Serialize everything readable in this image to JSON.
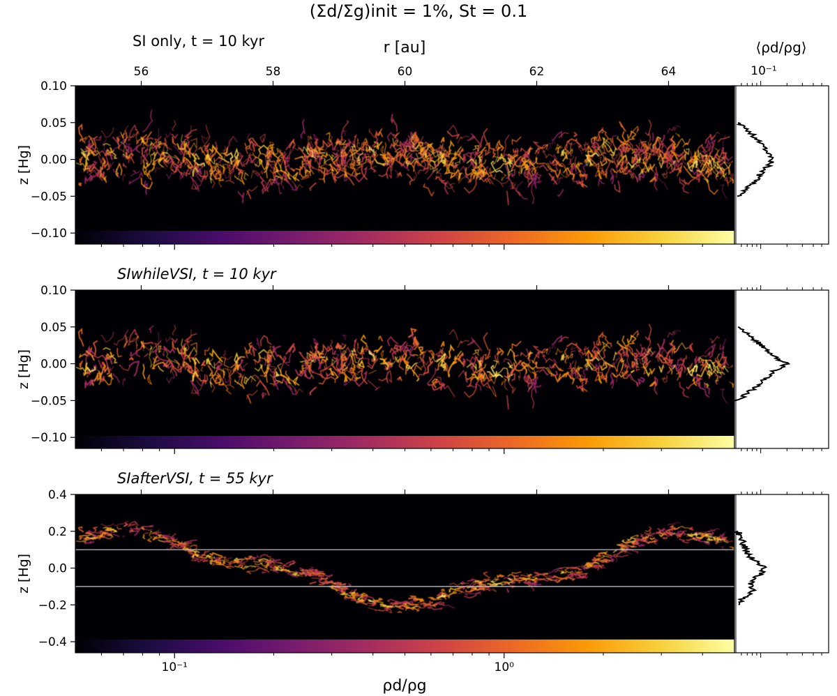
{
  "figure": {
    "title": "(Σd/Σg)init = 1%, St = 0.1",
    "top_axis_label": "r [au]",
    "profile_axis_label": "⟨ρd/ρg⟩",
    "profile_tick_label": "10⁻¹",
    "colorbar_label": "ρd/ρg",
    "zlabel": "z [Hg]"
  },
  "colors": {
    "background": "#000004",
    "profile_line": "#000000",
    "guide_lines": "#cfcfcf"
  },
  "chart_data": [
    {
      "type": "heatmap",
      "panel_title": "SI only, t = 10 kyr",
      "x_axis": {
        "label": "r [au]",
        "range": [
          55.0,
          65.0
        ],
        "ticks": [
          56,
          58,
          60,
          62,
          64
        ],
        "tick_labels": [
          "56",
          "58",
          "60",
          "62",
          "64"
        ]
      },
      "y_axis": {
        "label": "z [Hg]",
        "range": [
          -0.115,
          0.1
        ],
        "ticks": [
          0.1,
          0.05,
          0.0,
          -0.05,
          -0.1
        ],
        "tick_labels": [
          "0.10",
          "0.05",
          "0.00",
          "−0.05",
          "−0.10"
        ]
      },
      "dust_layer": {
        "half_width": 0.05,
        "mode": "flat"
      },
      "profile": {
        "xscale": "log",
        "range": [
          0.05,
          0.6
        ],
        "tick_label": "10⁻¹",
        "profile_z": [
          -0.05,
          -0.04,
          -0.03,
          -0.02,
          -0.01,
          0.0,
          0.01,
          0.02,
          0.03,
          0.04,
          0.05
        ],
        "profile_value": [
          0.055,
          0.07,
          0.085,
          0.1,
          0.12,
          0.14,
          0.12,
          0.1,
          0.085,
          0.07,
          0.055
        ]
      }
    },
    {
      "type": "heatmap",
      "panel_title": "SIwhileVSI, t = 10 kyr",
      "x_axis": {
        "label": "r [au]",
        "range": [
          55.0,
          65.0
        ],
        "ticks": [
          56,
          58,
          60,
          62,
          64
        ]
      },
      "y_axis": {
        "label": "z [Hg]",
        "range": [
          -0.115,
          0.1
        ],
        "ticks": [
          0.1,
          0.05,
          0.0,
          -0.05,
          -0.1
        ],
        "tick_labels": [
          "0.10",
          "0.05",
          "0.00",
          "−0.05",
          "−0.10"
        ]
      },
      "dust_layer": {
        "half_width": 0.05,
        "mode": "flat"
      },
      "profile": {
        "xscale": "log",
        "range": [
          0.05,
          0.6
        ],
        "profile_z": [
          -0.05,
          -0.04,
          -0.03,
          -0.02,
          -0.01,
          0.0,
          0.01,
          0.02,
          0.03,
          0.04,
          0.05
        ],
        "profile_value": [
          0.055,
          0.07,
          0.09,
          0.115,
          0.14,
          0.2,
          0.14,
          0.115,
          0.09,
          0.07,
          0.055
        ]
      }
    },
    {
      "type": "heatmap",
      "panel_title": "SIafterVSI, t = 55 kyr",
      "x_axis": {
        "label": "r [au]",
        "range": [
          55.0,
          65.0
        ],
        "ticks": [
          56,
          58,
          60,
          62,
          64
        ]
      },
      "y_axis": {
        "label": "z [Hg]",
        "range": [
          -0.46,
          0.4
        ],
        "ticks": [
          0.4,
          0.2,
          0.0,
          -0.2,
          -0.4
        ],
        "tick_labels": [
          "0.4",
          "0.2",
          "0.0",
          "−0.2",
          "−0.4"
        ]
      },
      "dust_layer": {
        "half_width": 0.06,
        "mode": "wave"
      },
      "guide_lines_z": [
        0.1,
        -0.1
      ],
      "profile": {
        "xscale": "log",
        "range": [
          0.05,
          0.6
        ],
        "profile_z": [
          -0.2,
          -0.16,
          -0.12,
          -0.08,
          -0.04,
          0.0,
          0.04,
          0.08,
          0.12,
          0.16,
          0.2
        ],
        "profile_value": [
          0.055,
          0.065,
          0.08,
          0.075,
          0.095,
          0.11,
          0.085,
          0.07,
          0.065,
          0.06,
          0.055
        ]
      }
    }
  ],
  "colorbar": {
    "label": "ρd/ρg",
    "scale": "log",
    "range": [
      0.05,
      5.0
    ],
    "major_ticks": [
      0.1,
      1.0
    ],
    "tick_labels": [
      "10⁻¹",
      "10⁰"
    ],
    "minor_ticks": [
      0.06,
      0.07,
      0.08,
      0.09,
      0.2,
      0.3,
      0.4,
      0.5,
      0.6,
      0.7,
      0.8,
      0.9,
      2,
      3,
      4
    ],
    "colors": [
      "#000004",
      "#1b0c41",
      "#4a0c6b",
      "#781c6d",
      "#a52c60",
      "#cf4446",
      "#ed6925",
      "#fb9b06",
      "#f7d13d",
      "#fcffa4"
    ]
  }
}
